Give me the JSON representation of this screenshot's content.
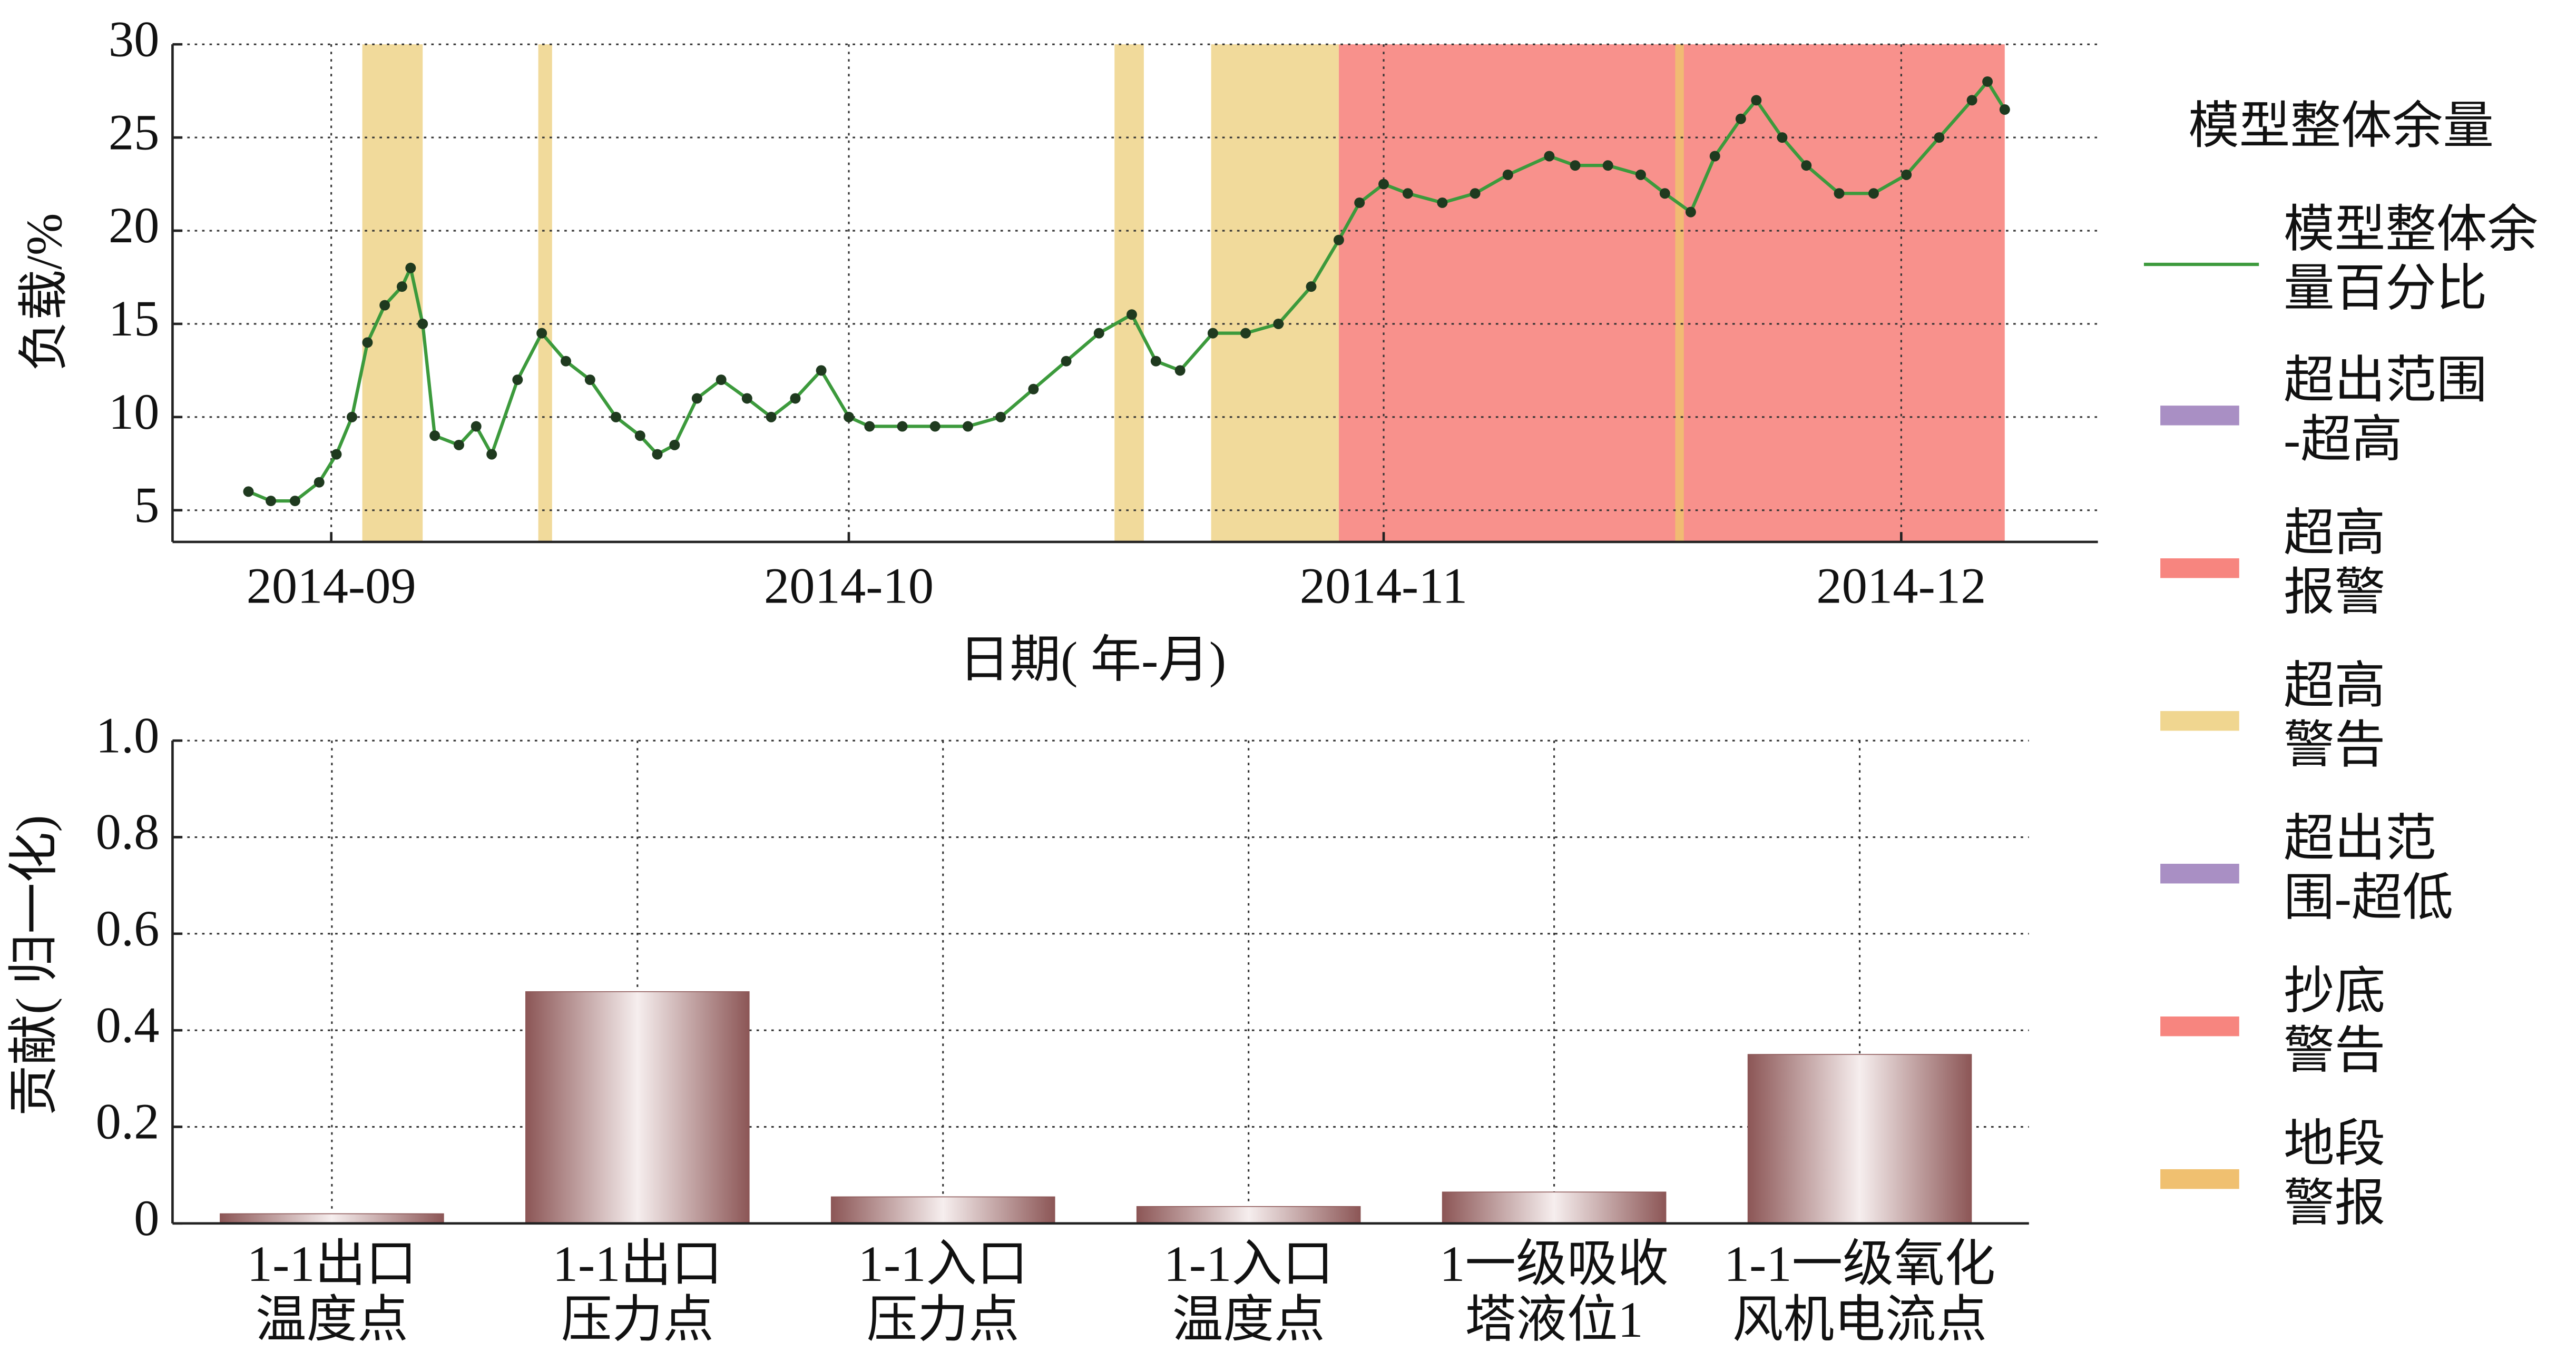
{
  "chart_data": [
    {
      "type": "line",
      "y_label": "负载/%",
      "x_label": "日期( 年-月)",
      "xlim": [
        234.8,
        346.4
      ],
      "xticks": [
        {
          "value": 244,
          "label": "2014-09"
        },
        {
          "value": 274,
          "label": "2014-10"
        },
        {
          "value": 305,
          "label": "2014-11"
        },
        {
          "value": 335,
          "label": "2014-12"
        }
      ],
      "ylim": [
        3.3,
        30
      ],
      "yticks": [
        5,
        10,
        15,
        20,
        25,
        30
      ],
      "grid": true,
      "legend_title": "模型整体余量",
      "legend": "right",
      "series": [
        {
          "name": [
            "模型整体余",
            "量百分比"
          ],
          "color": "#3c9a3c",
          "x": [
            239.2,
            240.5,
            241.9,
            243.3,
            244.3,
            245.2,
            246.1,
            247.1,
            248.1,
            248.6,
            249.3,
            250,
            251.4,
            252.4,
            253.3,
            254.8,
            256.2,
            257.6,
            259,
            260.5,
            261.9,
            262.9,
            263.9,
            265.2,
            266.6,
            268.1,
            269.5,
            270.9,
            272.4,
            274,
            275.2,
            277.1,
            279,
            280.9,
            282.8,
            284.7,
            286.6,
            288.5,
            290.4,
            291.8,
            293.2,
            295.1,
            297,
            298.9,
            300.8,
            302.4,
            303.6,
            305,
            306.4,
            308.4,
            310.3,
            312.2,
            314.6,
            316.1,
            318,
            319.9,
            321.3,
            322.8,
            324.2,
            325.7,
            326.6,
            328.1,
            329.5,
            331.4,
            333.4,
            335.3,
            337.2,
            339.1,
            340,
            341
          ],
          "values": [
            6,
            5.5,
            5.5,
            6.5,
            8,
            10,
            14,
            16,
            17,
            18,
            15,
            9,
            8.5,
            9.5,
            8,
            12,
            14.5,
            13,
            12,
            10,
            9,
            8,
            8.5,
            11,
            12,
            11,
            10,
            11,
            12.5,
            10,
            9.5,
            9.5,
            9.5,
            9.5,
            10,
            11.5,
            13,
            14.5,
            15.5,
            13,
            12.5,
            14.5,
            14.5,
            15,
            17,
            19.5,
            21.5,
            22.5,
            22,
            21.5,
            22,
            23,
            24,
            23.5,
            23.5,
            23,
            22,
            21,
            24,
            26,
            27,
            25,
            23.5,
            22,
            22,
            23,
            25,
            27,
            28,
            26.5
          ]
        }
      ],
      "bands": [
        {
          "name": [
            "超出范围",
            "-超高"
          ],
          "color": "#a98fc4",
          "ranges": []
        },
        {
          "name": [
            "超高",
            "报警"
          ],
          "color": "#f7857f",
          "ranges": [
            [
              302.4,
              341
            ]
          ]
        },
        {
          "name": [
            "超高",
            "警告"
          ],
          "color": "#f0d690",
          "ranges": [
            [
              245.8,
              249.3
            ],
            [
              256,
              256.8
            ],
            [
              289.4,
              291.1
            ],
            [
              295,
              302.4
            ]
          ]
        },
        {
          "name": [
            "超出范",
            "围-超低"
          ],
          "color": "#a98fc4",
          "ranges": []
        },
        {
          "name": [
            "抄底",
            "警告"
          ],
          "color": "#f7857f",
          "ranges": []
        },
        {
          "name": [
            "地段",
            "警报"
          ],
          "color": "#f0c070",
          "ranges": [
            [
              321.9,
              322.4
            ]
          ]
        }
      ]
    },
    {
      "type": "bar",
      "y_label": "贡献( 归一化)",
      "categories": [
        [
          "1-1出口",
          "温度点"
        ],
        [
          "1-1出口",
          "压力点"
        ],
        [
          "1-1入口",
          "压力点"
        ],
        [
          "1-1入口",
          "温度点"
        ],
        [
          "1一级吸收",
          "塔液位1"
        ],
        [
          "1-1一级氧化",
          "风机电流点"
        ]
      ],
      "values": [
        0.02,
        0.48,
        0.055,
        0.035,
        0.065,
        0.35
      ],
      "color": "#8c5656",
      "ylim": [
        0,
        1
      ],
      "yticks": [
        0,
        0.2,
        0.4,
        0.6,
        0.8,
        {
          "value": 1,
          "label": "1.0"
        }
      ],
      "grid": true
    }
  ]
}
